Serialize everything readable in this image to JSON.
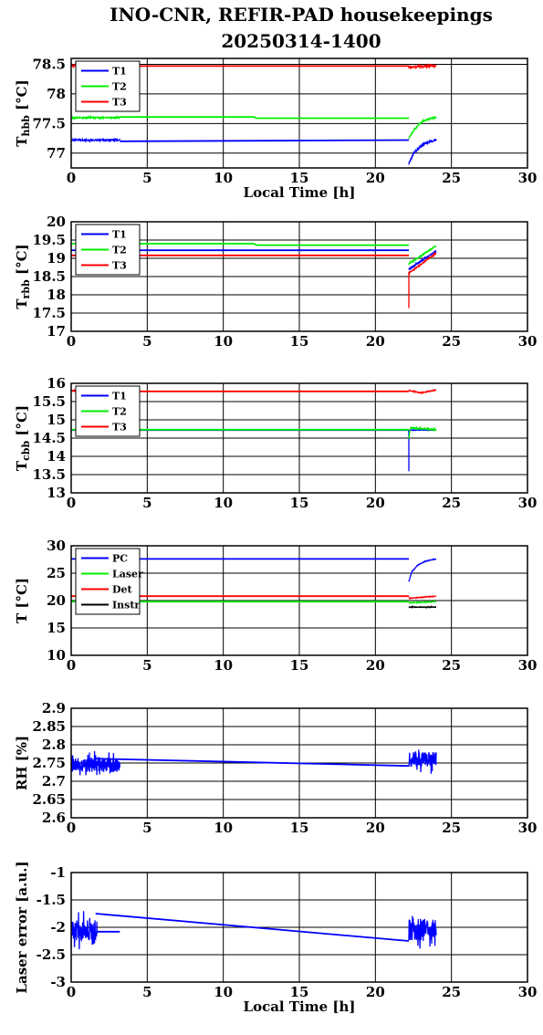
{
  "figure": {
    "title_line1": "INO-CNR, REFIR-PAD housekeepings",
    "title_line2": "20250314-1400"
  },
  "chart_data": [
    {
      "type": "line",
      "id": "thbb",
      "ylabel": "T",
      "ylabel_sub": "hbb",
      "ylabel_unit": " [°C]",
      "xlabel": "Local Time [h]",
      "xlim": [
        0,
        30
      ],
      "xticks": [
        0,
        5,
        10,
        15,
        20,
        25,
        30
      ],
      "ylim": [
        76.75,
        78.6
      ],
      "yticks": [
        77,
        77.5,
        78,
        78.5
      ],
      "ytick_labels": [
        "77",
        "77.5",
        "78",
        "78.5"
      ],
      "grid": true,
      "legend_position": "top-left",
      "series": [
        {
          "name": "T1",
          "color": "#0000ff",
          "segments": [
            {
              "x": [
                0,
                3.2
              ],
              "y": [
                77.22,
                77.22
              ],
              "noise": 0.02
            },
            {
              "x": [
                3.2,
                22.2
              ],
              "y": [
                77.2,
                77.22
              ],
              "noise": 0
            },
            {
              "x": [
                22.2,
                22.5,
                23,
                23.5,
                24
              ],
              "y": [
                76.82,
                77.0,
                77.12,
                77.19,
                77.22
              ],
              "noise": 0.03
            }
          ]
        },
        {
          "name": "T2",
          "color": "#00ee00",
          "segments": [
            {
              "x": [
                0,
                3.2
              ],
              "y": [
                77.6,
                77.6
              ],
              "noise": 0.02
            },
            {
              "x": [
                3.2,
                12,
                12.2,
                22.2
              ],
              "y": [
                77.61,
                77.61,
                77.59,
                77.59
              ],
              "noise": 0
            },
            {
              "x": [
                22.2,
                22.5,
                23,
                23.5,
                24
              ],
              "y": [
                77.25,
                77.38,
                77.52,
                77.58,
                77.6
              ],
              "noise": 0.02
            }
          ]
        },
        {
          "name": "T3",
          "color": "#ff0000",
          "segments": [
            {
              "x": [
                0,
                3.2
              ],
              "y": [
                78.48,
                78.48
              ],
              "noise": 0.02
            },
            {
              "x": [
                3.2,
                22.2
              ],
              "y": [
                78.47,
                78.47
              ],
              "noise": 0
            },
            {
              "x": [
                22.2,
                24
              ],
              "y": [
                78.45,
                78.48
              ],
              "noise": 0.04
            }
          ]
        }
      ]
    },
    {
      "type": "line",
      "id": "trbb",
      "ylabel": "T",
      "ylabel_sub": "rbb",
      "ylabel_unit": " [°C]",
      "xlabel": "",
      "xlim": [
        0,
        30
      ],
      "xticks": [
        0,
        5,
        10,
        15,
        20,
        25,
        30
      ],
      "ylim": [
        17,
        20
      ],
      "yticks": [
        17,
        17.5,
        18,
        18.5,
        19,
        19.5,
        20
      ],
      "ytick_labels": [
        "17",
        "17.5",
        "18",
        "18.5",
        "19",
        "19.5",
        "20"
      ],
      "grid": true,
      "legend_position": "top-left",
      "series": [
        {
          "name": "T1",
          "color": "#0000ff",
          "segments": [
            {
              "x": [
                0,
                22.2
              ],
              "y": [
                19.22,
                19.22
              ],
              "noise": 0
            },
            {
              "x": [
                22.2,
                24
              ],
              "y": [
                18.7,
                19.2
              ],
              "noise": 0.03
            }
          ]
        },
        {
          "name": "T2",
          "color": "#00ee00",
          "segments": [
            {
              "x": [
                0,
                12,
                12.2,
                22.2
              ],
              "y": [
                19.4,
                19.4,
                19.36,
                19.36
              ],
              "noise": 0
            },
            {
              "x": [
                22.2,
                24
              ],
              "y": [
                18.85,
                19.35
              ],
              "noise": 0.03
            }
          ]
        },
        {
          "name": "T3",
          "color": "#ff0000",
          "segments": [
            {
              "x": [
                0,
                22.2
              ],
              "y": [
                19.08,
                19.08
              ],
              "noise": 0
            },
            {
              "x": [
                22.2,
                22.2,
                22.4,
                24
              ],
              "y": [
                17.65,
                18.6,
                18.65,
                19.15
              ],
              "noise": 0.03
            }
          ]
        }
      ]
    },
    {
      "type": "line",
      "id": "tcbb",
      "ylabel": "T",
      "ylabel_sub": "cbb",
      "ylabel_unit": " [°C]",
      "xlabel": "",
      "xlim": [
        0,
        30
      ],
      "xticks": [
        0,
        5,
        10,
        15,
        20,
        25,
        30
      ],
      "ylim": [
        13,
        16
      ],
      "yticks": [
        13,
        13.5,
        14,
        14.5,
        15,
        15.5,
        16
      ],
      "ytick_labels": [
        "13",
        "13.5",
        "14",
        "14.5",
        "15",
        "15.5",
        "16"
      ],
      "grid": true,
      "legend_position": "top-left",
      "series": [
        {
          "name": "T1",
          "color": "#0000ff",
          "segments": [
            {
              "x": [
                0,
                22.2
              ],
              "y": [
                14.72,
                14.72
              ],
              "noise": 0
            },
            {
              "x": [
                22.2,
                22.2,
                22.3,
                24
              ],
              "y": [
                13.6,
                14.7,
                14.72,
                14.72
              ],
              "noise": 0.01
            }
          ]
        },
        {
          "name": "T2",
          "color": "#00ee00",
          "segments": [
            {
              "x": [
                0,
                22.2
              ],
              "y": [
                14.73,
                14.73
              ],
              "noise": 0
            },
            {
              "x": [
                22.2,
                22.3,
                24
              ],
              "y": [
                14.5,
                14.78,
                14.73
              ],
              "noise": 0.03
            }
          ]
        },
        {
          "name": "T3",
          "color": "#ff0000",
          "segments": [
            {
              "x": [
                0,
                3.2
              ],
              "y": [
                15.8,
                15.8
              ],
              "noise": 0.02
            },
            {
              "x": [
                3.2,
                22.2
              ],
              "y": [
                15.78,
                15.78
              ],
              "noise": 0
            },
            {
              "x": [
                22.2,
                23,
                24
              ],
              "y": [
                15.8,
                15.74,
                15.82
              ],
              "noise": 0.02
            }
          ]
        }
      ]
    },
    {
      "type": "line",
      "id": "temps",
      "ylabel": "T [°C]",
      "ylabel_sub": "",
      "ylabel_unit": "",
      "xlabel": "",
      "xlim": [
        0,
        30
      ],
      "xticks": [
        0,
        5,
        10,
        15,
        20,
        25,
        30
      ],
      "ylim": [
        10,
        30
      ],
      "yticks": [
        10,
        15,
        20,
        25,
        30
      ],
      "ytick_labels": [
        "10",
        "15",
        "20",
        "25",
        "30"
      ],
      "grid": true,
      "legend_position": "top-left",
      "series": [
        {
          "name": "PC",
          "color": "#0000ff",
          "segments": [
            {
              "x": [
                0,
                22.2
              ],
              "y": [
                27.6,
                27.6
              ],
              "noise": 0
            },
            {
              "x": [
                22.2,
                22.4,
                22.8,
                23.3,
                24
              ],
              "y": [
                23.5,
                25.3,
                26.5,
                27.2,
                27.6
              ],
              "noise": 0.1
            }
          ]
        },
        {
          "name": "Laser",
          "color": "#00ee00",
          "segments": [
            {
              "x": [
                0,
                22.2
              ],
              "y": [
                19.8,
                19.8
              ],
              "noise": 0
            },
            {
              "x": [
                22.2,
                24
              ],
              "y": [
                19.6,
                19.8
              ],
              "noise": 0.1
            }
          ]
        },
        {
          "name": "Det",
          "color": "#ff0000",
          "segments": [
            {
              "x": [
                0,
                22.2
              ],
              "y": [
                20.8,
                20.8
              ],
              "noise": 0
            },
            {
              "x": [
                22.2,
                24
              ],
              "y": [
                20.4,
                20.8
              ],
              "noise": 0.1
            }
          ]
        },
        {
          "name": "Instr",
          "color": "#000000",
          "segments": [
            {
              "x": [
                22.2,
                24
              ],
              "y": [
                18.8,
                18.8
              ],
              "noise": 0.1
            }
          ]
        }
      ]
    },
    {
      "type": "line",
      "id": "rh",
      "ylabel": "RH [%]",
      "ylabel_sub": "",
      "ylabel_unit": "",
      "xlabel": "",
      "xlim": [
        0,
        30
      ],
      "xticks": [
        0,
        5,
        10,
        15,
        20,
        25,
        30
      ],
      "ylim": [
        2.6,
        2.9
      ],
      "yticks": [
        2.6,
        2.65,
        2.7,
        2.75,
        2.8,
        2.85,
        2.9
      ],
      "ytick_labels": [
        "2.6",
        "2.65",
        "2.7",
        "2.75",
        "2.8",
        "2.85",
        "2.9"
      ],
      "grid": true,
      "legend_position": "none",
      "series": [
        {
          "name": "",
          "color": "#0000ff",
          "segments": [
            {
              "x": [
                0,
                3.2
              ],
              "y": [
                2.745,
                2.745
              ],
              "noise": 0.04
            },
            {
              "x": [
                1.6,
                22.2
              ],
              "y": [
                2.762,
                2.742
              ],
              "noise": 0
            },
            {
              "x": [
                22.2,
                24
              ],
              "y": [
                2.76,
                2.76
              ],
              "noise": 0.04
            }
          ]
        }
      ]
    },
    {
      "type": "line",
      "id": "laser",
      "ylabel": "Laser error [a.u.]",
      "ylabel_sub": "",
      "ylabel_unit": "",
      "xlabel": "Local Time [h]",
      "xlim": [
        0,
        30
      ],
      "xticks": [
        0,
        5,
        10,
        15,
        20,
        25,
        30
      ],
      "ylim": [
        -3,
        -1
      ],
      "yticks": [
        -3,
        -2.5,
        -2,
        -1.5,
        -1
      ],
      "ytick_labels": [
        "-3",
        "-2.5",
        "-2",
        "-1.5",
        "-1"
      ],
      "grid": true,
      "legend_position": "none",
      "series": [
        {
          "name": "",
          "color": "#0000ff",
          "segments": [
            {
              "x": [
                0,
                1.7
              ],
              "y": [
                -2.05,
                -2.05
              ],
              "noise": 0.38
            },
            {
              "x": [
                1.7,
                3.2
              ],
              "y": [
                -2.08,
                -2.08
              ],
              "noise": 0
            },
            {
              "x": [
                1.6,
                22.2
              ],
              "y": [
                -1.75,
                -2.25
              ],
              "noise": 0
            },
            {
              "x": [
                22.2,
                24
              ],
              "y": [
                -2.05,
                -2.05
              ],
              "noise": 0.38
            }
          ]
        }
      ]
    }
  ]
}
